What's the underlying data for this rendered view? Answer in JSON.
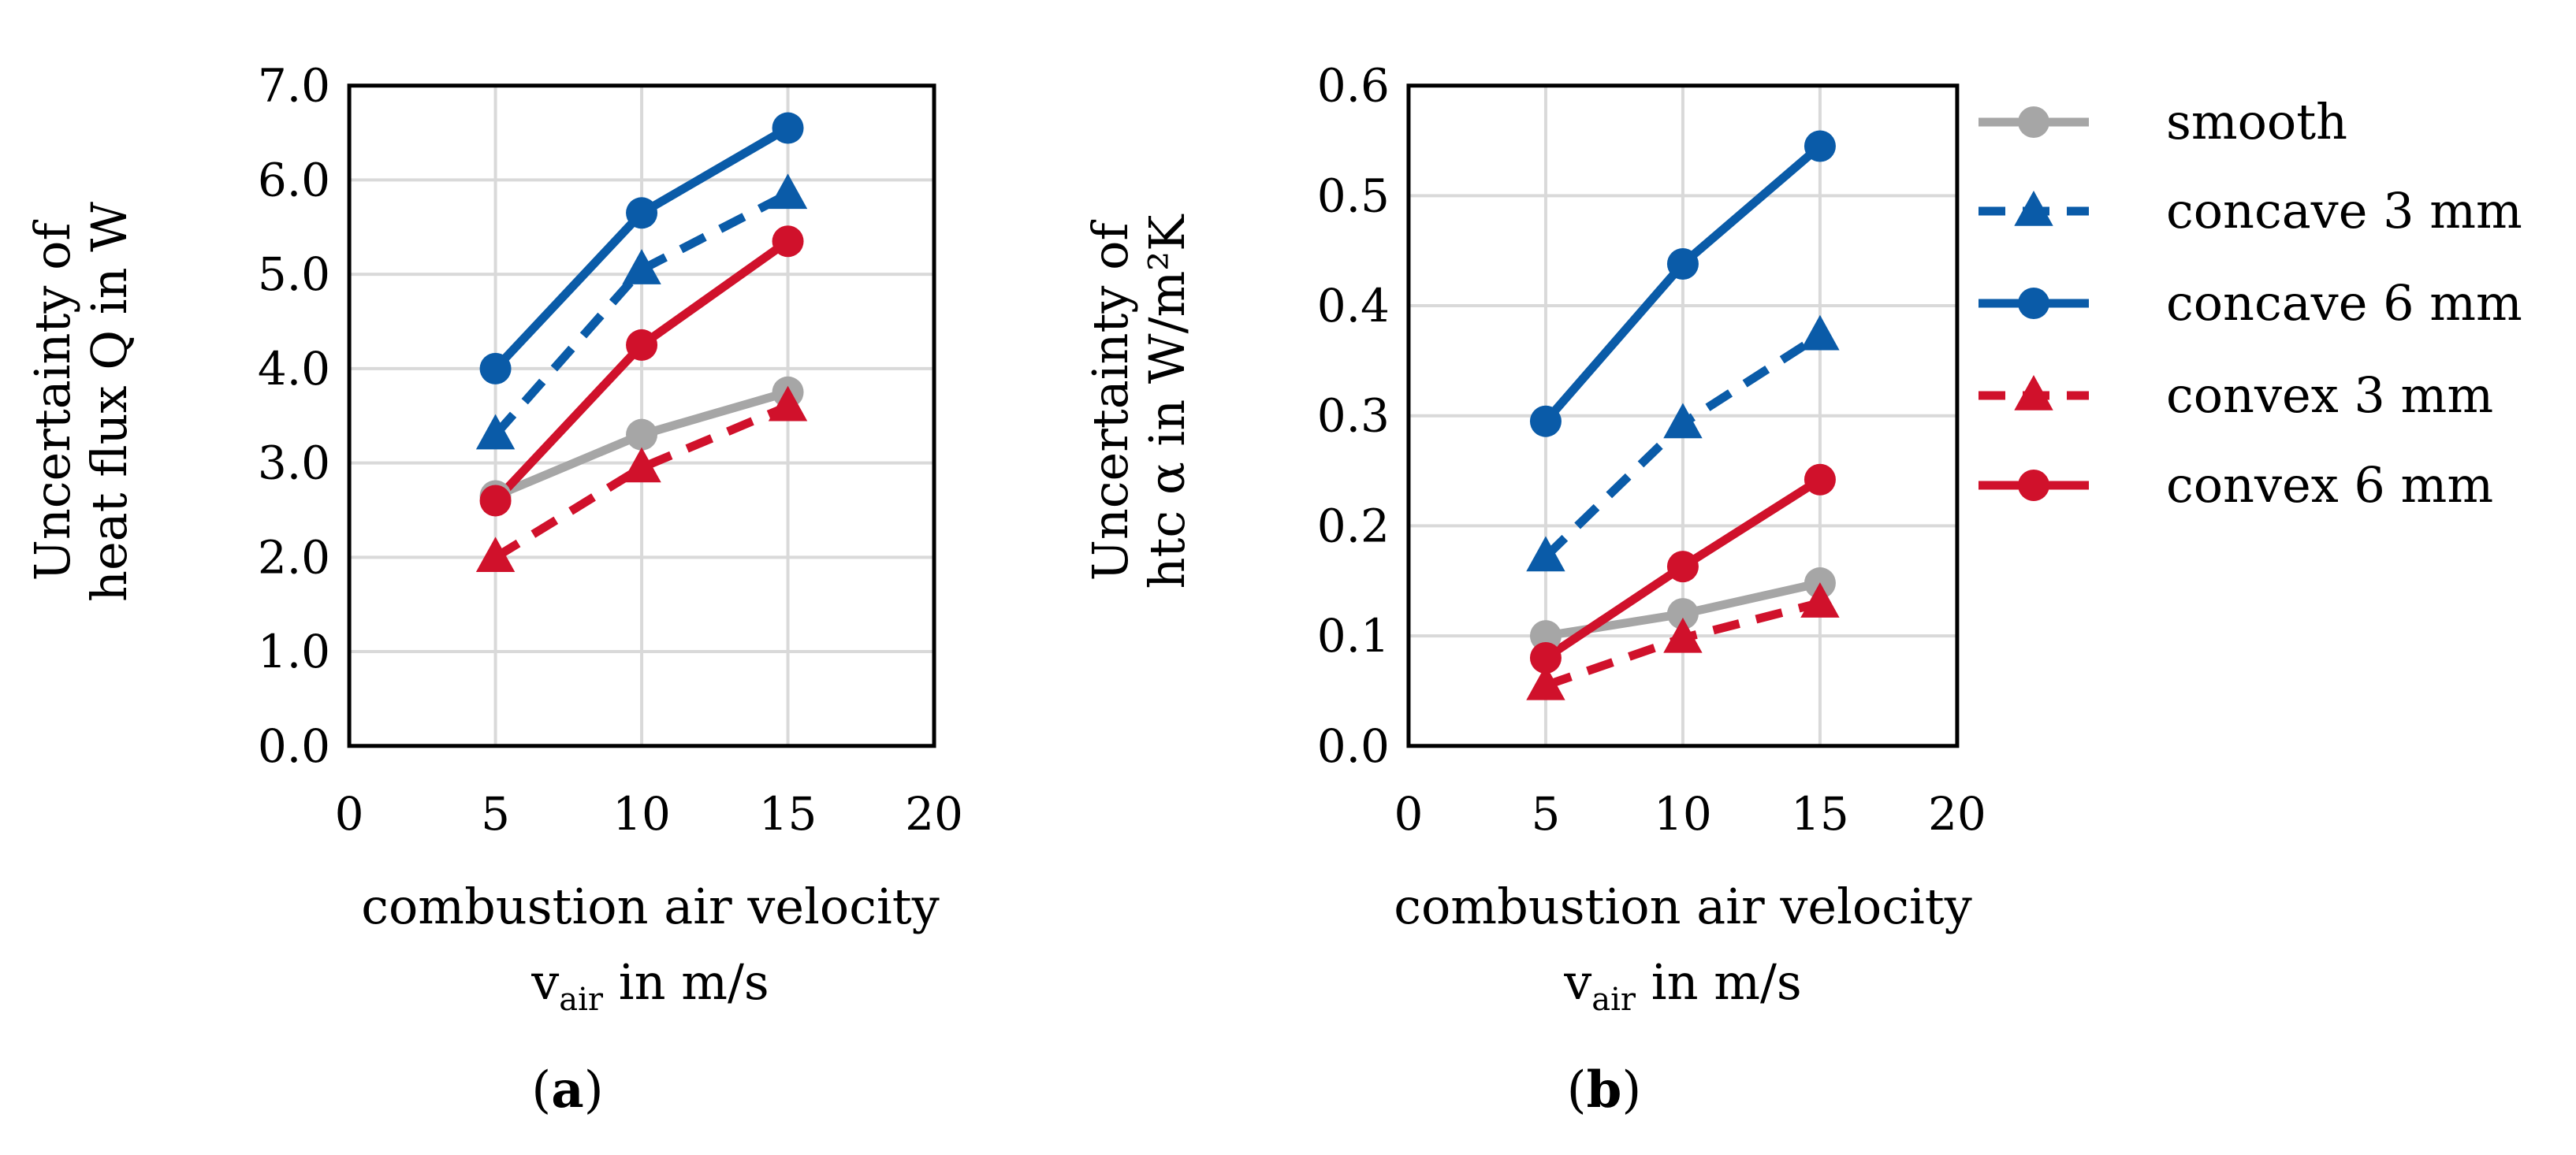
{
  "series_styles": [
    {
      "key": "smooth",
      "color": "#A6A6A6",
      "marker": "circle",
      "dash": "solid"
    },
    {
      "key": "concave3",
      "color": "#0A5BA8",
      "marker": "triangle",
      "dash": "dashed"
    },
    {
      "key": "concave6",
      "color": "#0A5BA8",
      "marker": "circle",
      "dash": "solid"
    },
    {
      "key": "convex3",
      "color": "#D0112B",
      "marker": "triangle",
      "dash": "dashed"
    },
    {
      "key": "convex6",
      "color": "#D0112B",
      "marker": "circle",
      "dash": "solid"
    }
  ],
  "legend": {
    "entries": [
      "smooth",
      "concave 3 mm",
      "concave 6 mm",
      "convex 3 mm",
      "convex 6 mm"
    ]
  },
  "chart_data": [
    {
      "type": "line",
      "panel_label": "a",
      "title": "",
      "xlabel": "combustion air velocity",
      "xlabel2_main": "v",
      "xlabel2_sub": "air",
      "xlabel2_tail": " in m/s",
      "ylabel_line1": "Uncertainty of",
      "ylabel_line2": "heat flux Q in W",
      "xlim": [
        0,
        20
      ],
      "ylim": [
        0,
        7
      ],
      "x_ticks": [
        "0",
        "5",
        "10",
        "15",
        "20"
      ],
      "y_ticks": [
        "0.0",
        "1.0",
        "2.0",
        "3.0",
        "4.0",
        "5.0",
        "6.0",
        "7.0"
      ],
      "x": [
        5,
        10,
        15
      ],
      "series": [
        {
          "name": "smooth",
          "values": [
            2.65,
            3.3,
            3.75
          ]
        },
        {
          "name": "concave 3 mm",
          "values": [
            3.3,
            5.05,
            5.85
          ]
        },
        {
          "name": "concave 6 mm",
          "values": [
            4.0,
            5.65,
            6.55
          ]
        },
        {
          "name": "convex 3 mm",
          "values": [
            2.0,
            2.95,
            3.6
          ]
        },
        {
          "name": "convex 6 mm",
          "values": [
            2.6,
            4.25,
            5.35
          ]
        }
      ]
    },
    {
      "type": "line",
      "panel_label": "b",
      "title": "",
      "xlabel": "combustion air velocity",
      "xlabel2_main": "v",
      "xlabel2_sub": "air",
      "xlabel2_tail": " in m/s",
      "ylabel_line1": "Uncertainty of",
      "ylabel_line2": "htc α in W/m²K",
      "xlim": [
        0,
        20
      ],
      "ylim": [
        0,
        0.6
      ],
      "x_ticks": [
        "0",
        "5",
        "10",
        "15",
        "20"
      ],
      "y_ticks": [
        "0.0",
        "0.1",
        "0.2",
        "0.3",
        "0.4",
        "0.5",
        "0.6"
      ],
      "x": [
        5,
        10,
        15
      ],
      "series": [
        {
          "name": "smooth",
          "values": [
            0.1,
            0.12,
            0.148
          ]
        },
        {
          "name": "concave 3 mm",
          "values": [
            0.172,
            0.293,
            0.373
          ]
        },
        {
          "name": "concave 6 mm",
          "values": [
            0.295,
            0.438,
            0.545
          ]
        },
        {
          "name": "convex 3 mm",
          "values": [
            0.055,
            0.098,
            0.13
          ]
        },
        {
          "name": "convex 6 mm",
          "values": [
            0.08,
            0.163,
            0.242
          ]
        }
      ]
    }
  ]
}
